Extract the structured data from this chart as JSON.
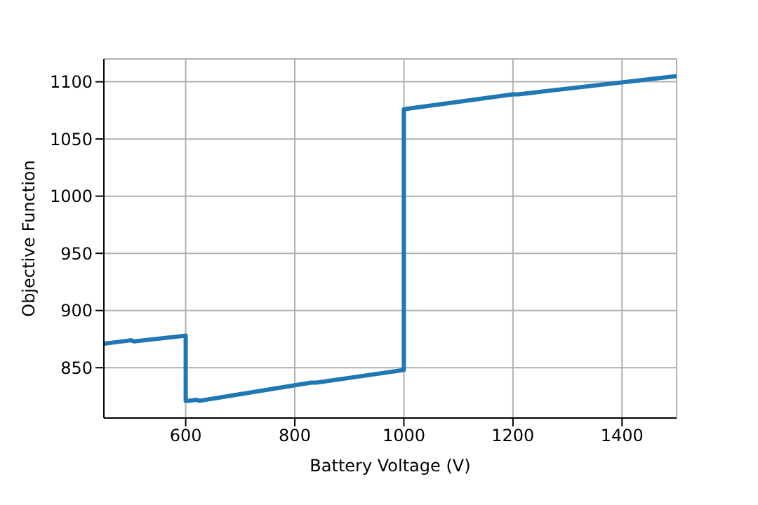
{
  "chart_data": {
    "type": "line",
    "xlabel": "Battery Voltage (V)",
    "ylabel": "Objective Function",
    "series": [
      {
        "color": "#1f77b4",
        "x": [
          450,
          500,
          505,
          600,
          600,
          605,
          620,
          625,
          830,
          840,
          1000,
          1000,
          1200,
          1210,
          1500
        ],
        "values": [
          871,
          874,
          873,
          878,
          821,
          821,
          822,
          821,
          837,
          837,
          848,
          1076,
          1089,
          1089,
          1105
        ]
      }
    ],
    "xlim": [
      450,
      1500
    ],
    "xticks": [
      600,
      800,
      1000,
      1200,
      1400
    ],
    "ylim": [
      806,
      1120
    ],
    "yticks": [
      850,
      900,
      950,
      1000,
      1050,
      1100
    ],
    "grid": true,
    "marker": "none",
    "line_style": "solid"
  }
}
